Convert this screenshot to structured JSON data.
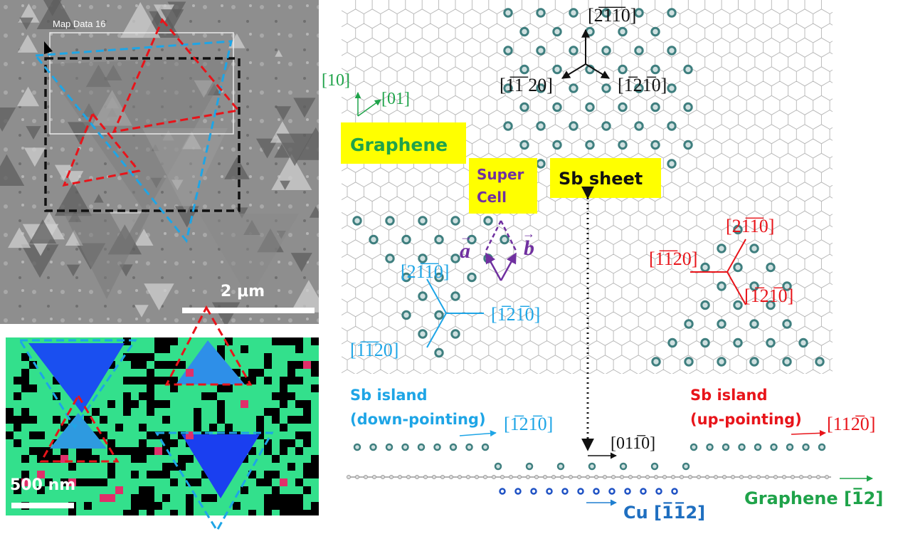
{
  "sem_panel": {
    "map_label": "Map Data 16",
    "scale_label": "2 μm"
  },
  "eds_panel": {
    "scale_label": "500 nm"
  },
  "lattice": {
    "graphene_axes": {
      "axis_a": "[10]",
      "axis_b": "[01]"
    },
    "graphene_box": "Graphene",
    "supercell_box": [
      "Super",
      "Cell"
    ],
    "vector_a": "a",
    "vector_b": "b",
    "sb_sheet_box": "Sb sheet",
    "top_dirs": [
      "[2",
      "1",
      "1",
      "0]",
      "[",
      "1",
      "1",
      "20]",
      "[",
      "1",
      "2",
      "1",
      "0]"
    ]
  },
  "labels": {
    "top_2110": "[2̅1̅1̅0]",
    "top_1120": "[1̅1̅ 20]",
    "top_1210": "[1̅21̅0]",
    "blue_2110": "[21̅1̅0]",
    "blue_1210": "[1̅21̅0]",
    "blue_1120": "[1̅1̅20]",
    "red_2110": "[21̅1̅0]",
    "red_1120": "[1̅1̅20]",
    "red_1210": "[1̅21̅0]",
    "sb_island_down": [
      "Sb island",
      "(down-pointing)"
    ],
    "sb_island_up": [
      "Sb island",
      "(up-pointing)"
    ],
    "down_dir": "[1̅21̅0]",
    "up_dir": "[112̅0]",
    "sheet_dir": "[011̅0]",
    "graphene_dir": "Graphene [1̅2]",
    "cu_dir": "Cu [1̅1̅2]"
  },
  "colors": {
    "graphene_green": "#1fa34a",
    "sb_teal": "#3f7f7f",
    "down_blue": "#1ea5e6",
    "up_red": "#e8141a",
    "cu_blue": "#1f52c4",
    "supercell_purple": "#7030a0",
    "highlight_yellow": "#ffff00"
  }
}
